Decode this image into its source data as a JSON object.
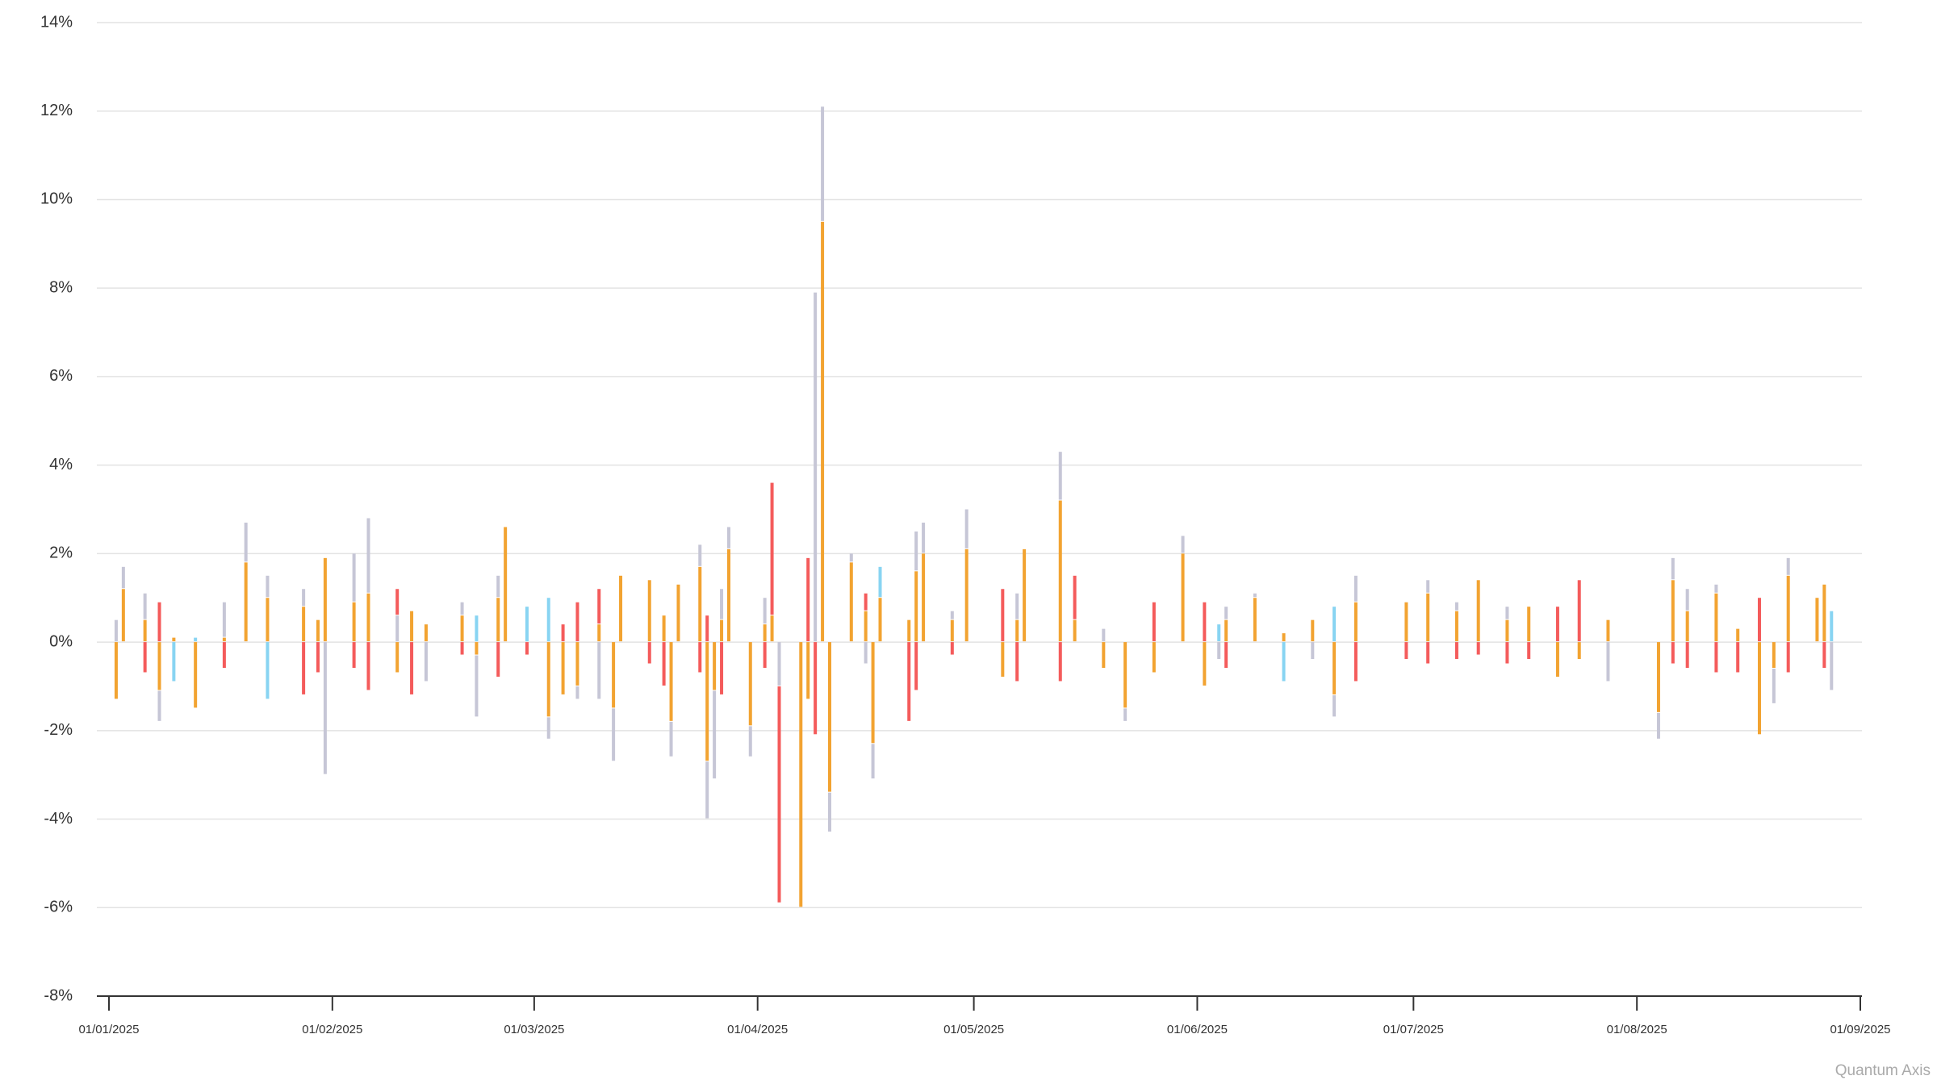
{
  "chart_data": {
    "type": "bar",
    "stacked": true,
    "watermark": "Quantum Axis",
    "xlim": [
      "01/01/2025",
      "01/09/2025"
    ],
    "xticks": [
      "01/01/2025",
      "01/02/2025",
      "01/03/2025",
      "01/04/2025",
      "01/05/2025",
      "01/06/2025",
      "01/07/2025",
      "01/08/2025",
      "01/09/2025"
    ],
    "ylim": [
      -8,
      14
    ],
    "yticks": [
      {
        "value": -8,
        "label": "-8%"
      },
      {
        "value": -6,
        "label": "-6%"
      },
      {
        "value": -4,
        "label": "-4%"
      },
      {
        "value": -2,
        "label": "-2%"
      },
      {
        "value": 0,
        "label": "0%"
      },
      {
        "value": 2,
        "label": "2%"
      },
      {
        "value": 4,
        "label": "4%"
      },
      {
        "value": 6,
        "label": "6%"
      },
      {
        "value": 8,
        "label": "8%"
      },
      {
        "value": 10,
        "label": "10%"
      },
      {
        "value": 12,
        "label": "12%"
      },
      {
        "value": 14,
        "label": "14%"
      }
    ],
    "grid": true,
    "x": [
      "02/01/2025",
      "03/01/2025",
      "06/01/2025",
      "08/01/2025",
      "10/01/2025",
      "13/01/2025",
      "17/01/2025",
      "20/01/2025",
      "23/01/2025",
      "28/01/2025",
      "30/01/2025",
      "31/01/2025",
      "04/02/2025",
      "06/02/2025",
      "10/02/2025",
      "12/02/2025",
      "14/02/2025",
      "19/02/2025",
      "21/02/2025",
      "24/02/2025",
      "25/02/2025",
      "28/02/2025",
      "03/03/2025",
      "05/03/2025",
      "07/03/2025",
      "10/03/2025",
      "12/03/2025",
      "13/03/2025",
      "17/03/2025",
      "19/03/2025",
      "20/03/2025",
      "21/03/2025",
      "24/03/2025",
      "25/03/2025",
      "26/03/2025",
      "27/03/2025",
      "28/03/2025",
      "31/03/2025",
      "02/04/2025",
      "03/04/2025",
      "04/04/2025",
      "07/04/2025",
      "08/04/2025",
      "09/04/2025",
      "10/04/2025",
      "11/04/2025",
      "14/04/2025",
      "16/04/2025",
      "17/04/2025",
      "18/04/2025",
      "22/04/2025",
      "23/04/2025",
      "24/04/2025",
      "28/04/2025",
      "30/04/2025",
      "05/05/2025",
      "07/05/2025",
      "08/05/2025",
      "13/05/2025",
      "15/05/2025",
      "19/05/2025",
      "22/05/2025",
      "26/05/2025",
      "30/05/2025",
      "02/06/2025",
      "04/06/2025",
      "05/06/2025",
      "09/06/2025",
      "13/06/2025",
      "17/06/2025",
      "20/06/2025",
      "23/06/2025",
      "30/06/2025",
      "03/07/2025",
      "07/07/2025",
      "10/07/2025",
      "14/07/2025",
      "17/07/2025",
      "21/07/2025",
      "24/07/2025",
      "28/07/2025",
      "04/08/2025",
      "06/08/2025",
      "08/08/2025",
      "12/08/2025",
      "15/08/2025",
      "18/08/2025",
      "20/08/2025",
      "22/08/2025",
      "26/08/2025",
      "27/08/2025",
      "28/08/2025"
    ],
    "series": [
      {
        "color": "#f2a331",
        "values": [
          -1.3,
          1.2,
          0.5,
          -1.1,
          0.1,
          -1.5,
          0.1,
          1.8,
          1.0,
          0.8,
          0.5,
          1.9,
          0.9,
          1.1,
          -0.7,
          0.7,
          0.4,
          0.6,
          -0.3,
          1.0,
          2.6,
          null,
          -1.7,
          -1.2,
          -1.0,
          0.4,
          -1.5,
          1.5,
          1.4,
          0.6,
          -1.8,
          1.3,
          1.7,
          -2.7,
          -1.1,
          0.5,
          2.1,
          -1.9,
          0.4,
          0.6,
          null,
          -6.0,
          -1.3,
          null,
          9.5,
          -3.4,
          1.8,
          0.7,
          -2.3,
          1.0,
          0.5,
          1.6,
          2.0,
          0.5,
          2.1,
          -0.8,
          0.5,
          2.1,
          3.2,
          0.5,
          -0.6,
          -1.5,
          -0.7,
          2.0,
          -1.0,
          null,
          0.5,
          1.0,
          0.2,
          0.5,
          -1.2,
          0.9,
          0.9,
          1.1,
          0.7,
          1.4,
          0.5,
          0.8,
          -0.8,
          -0.4,
          0.5,
          -1.6,
          1.4,
          0.7,
          1.1,
          0.3,
          -2.1,
          -0.6,
          1.5,
          1.0,
          1.3,
          null
        ]
      },
      {
        "color": "#c6c6d6",
        "values": [
          0.5,
          0.5,
          0.6,
          -0.7,
          null,
          null,
          0.8,
          0.9,
          0.5,
          0.4,
          null,
          -3.0,
          1.1,
          1.7,
          0.6,
          null,
          -0.9,
          0.3,
          -1.4,
          0.5,
          null,
          null,
          -0.5,
          null,
          -0.3,
          -1.3,
          -1.2,
          null,
          null,
          null,
          -0.8,
          null,
          0.5,
          -1.3,
          -2.0,
          0.7,
          0.5,
          -0.7,
          0.6,
          null,
          -1.0,
          null,
          null,
          7.9,
          2.6,
          -0.9,
          0.2,
          -0.5,
          -0.8,
          null,
          null,
          0.9,
          0.7,
          0.2,
          0.9,
          null,
          0.6,
          null,
          1.1,
          null,
          0.3,
          -0.3,
          null,
          0.4,
          null,
          -0.4,
          0.3,
          0.1,
          null,
          -0.4,
          -0.5,
          0.6,
          null,
          0.3,
          0.2,
          null,
          0.3,
          null,
          null,
          null,
          -0.9,
          -0.6,
          0.5,
          0.5,
          0.2,
          null,
          null,
          -0.8,
          0.4,
          null,
          null,
          -1.1
        ]
      },
      {
        "color": "#f45b5b",
        "values": [
          null,
          null,
          -0.7,
          0.9,
          null,
          null,
          -0.6,
          null,
          null,
          -1.2,
          -0.7,
          null,
          -0.6,
          -1.1,
          0.6,
          -1.2,
          null,
          -0.3,
          null,
          -0.8,
          null,
          -0.3,
          null,
          0.4,
          0.9,
          0.8,
          null,
          null,
          -0.5,
          -1.0,
          null,
          null,
          -0.7,
          0.6,
          null,
          -1.2,
          null,
          null,
          -0.6,
          3.0,
          -4.9,
          null,
          1.9,
          -2.1,
          null,
          null,
          null,
          0.4,
          null,
          null,
          -1.8,
          -1.1,
          null,
          -0.3,
          null,
          1.2,
          -0.9,
          null,
          -0.9,
          1.0,
          null,
          null,
          0.9,
          null,
          0.9,
          null,
          -0.6,
          null,
          null,
          null,
          null,
          -0.9,
          -0.4,
          -0.5,
          -0.4,
          -0.3,
          -0.5,
          -0.4,
          0.8,
          1.4,
          null,
          null,
          -0.5,
          -0.6,
          -0.7,
          -0.7,
          1.0,
          null,
          -0.7,
          null,
          -0.6,
          null
        ]
      },
      {
        "color": "#88d4f2",
        "values": [
          null,
          null,
          null,
          null,
          -0.9,
          0.1,
          null,
          null,
          -1.3,
          null,
          null,
          null,
          null,
          null,
          null,
          null,
          null,
          null,
          0.6,
          null,
          null,
          0.8,
          1.0,
          null,
          null,
          null,
          null,
          null,
          null,
          null,
          null,
          null,
          null,
          null,
          null,
          null,
          null,
          null,
          null,
          null,
          null,
          null,
          null,
          null,
          null,
          null,
          null,
          null,
          null,
          0.7,
          null,
          null,
          null,
          null,
          null,
          null,
          null,
          null,
          null,
          null,
          null,
          null,
          null,
          null,
          null,
          0.4,
          null,
          null,
          -0.9,
          null,
          0.8,
          null,
          null,
          null,
          null,
          null,
          null,
          null,
          null,
          null,
          null,
          null,
          null,
          null,
          null,
          null,
          null,
          null,
          null,
          null,
          null,
          0.7
        ]
      }
    ]
  }
}
